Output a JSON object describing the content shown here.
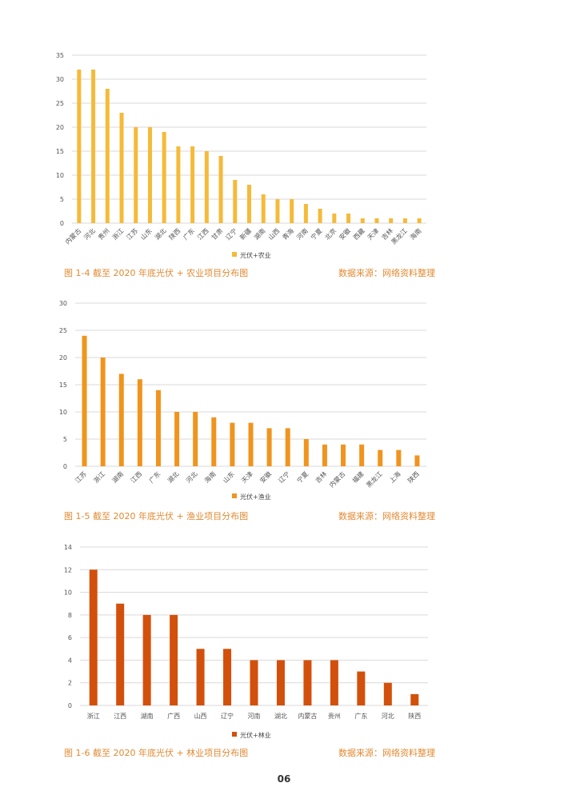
{
  "page_number": "06",
  "charts": [
    {
      "caption": "图 1-4 截至 2020 年底光伏 + 农业项目分布图",
      "source": "数据来源：网络资料整理",
      "accent": "#F5BA38",
      "caption_color": "#E08A32"
    },
    {
      "caption": "图 1-5 截至 2020 年底光伏 + 渔业项目分布图",
      "source": "数据来源：网络资料整理",
      "accent": "#F0941E",
      "caption_color": "#E08A32"
    },
    {
      "caption": "图 1-6 截至 2020 年底光伏 + 林业项目分布图",
      "source": "数据来源：网络资料整理",
      "accent": "#D2500C",
      "caption_color": "#E08A32"
    }
  ],
  "chart_data": [
    {
      "type": "bar",
      "categories": [
        "内蒙古",
        "河北",
        "贵州",
        "浙江",
        "江苏",
        "山东",
        "湖北",
        "陕西",
        "广东",
        "江西",
        "甘肃",
        "辽宁",
        "新疆",
        "湖南",
        "山西",
        "青海",
        "河南",
        "宁夏",
        "北京",
        "安徽",
        "西藏",
        "天津",
        "吉林",
        "黑龙江",
        "海南"
      ],
      "series": [
        {
          "name": "光伏+农业",
          "values": [
            32,
            32,
            28,
            23,
            20,
            20,
            19,
            16,
            16,
            15,
            14,
            9,
            8,
            6,
            5,
            5,
            4,
            3,
            2,
            2,
            1,
            1,
            1,
            1,
            1
          ]
        }
      ],
      "ylim": [
        0,
        35
      ],
      "yticks": [
        0,
        5,
        10,
        15,
        20,
        25,
        30,
        35
      ],
      "grid": true,
      "legend": "bottom-center",
      "rotated_labels": true
    },
    {
      "type": "bar",
      "categories": [
        "江苏",
        "浙江",
        "湖南",
        "江西",
        "广东",
        "湖北",
        "河北",
        "海南",
        "山东",
        "天津",
        "安徽",
        "辽宁",
        "宁夏",
        "吉林",
        "内蒙古",
        "福建",
        "黑龙江",
        "上海",
        "陕西"
      ],
      "series": [
        {
          "name": "光伏+渔业",
          "values": [
            24,
            20,
            17,
            16,
            14,
            10,
            10,
            9,
            8,
            8,
            7,
            7,
            5,
            4,
            4,
            4,
            3,
            3,
            2
          ]
        }
      ],
      "ylim": [
        0,
        30
      ],
      "yticks": [
        0,
        5,
        10,
        15,
        20,
        25,
        30
      ],
      "grid": true,
      "legend": "bottom-center",
      "rotated_labels": true
    },
    {
      "type": "bar",
      "categories": [
        "浙江",
        "江西",
        "湖南",
        "广西",
        "山西",
        "辽宁",
        "河南",
        "湖北",
        "内蒙古",
        "贵州",
        "广东",
        "河北",
        "陕西"
      ],
      "series": [
        {
          "name": "光伏+林业",
          "values": [
            12,
            9,
            8,
            8,
            5,
            5,
            4,
            4,
            4,
            4,
            3,
            2,
            1
          ]
        }
      ],
      "ylim": [
        0,
        14
      ],
      "yticks": [
        0,
        2,
        4,
        6,
        8,
        10,
        12,
        14
      ],
      "grid": true,
      "legend": "bottom-center",
      "rotated_labels": false
    }
  ]
}
